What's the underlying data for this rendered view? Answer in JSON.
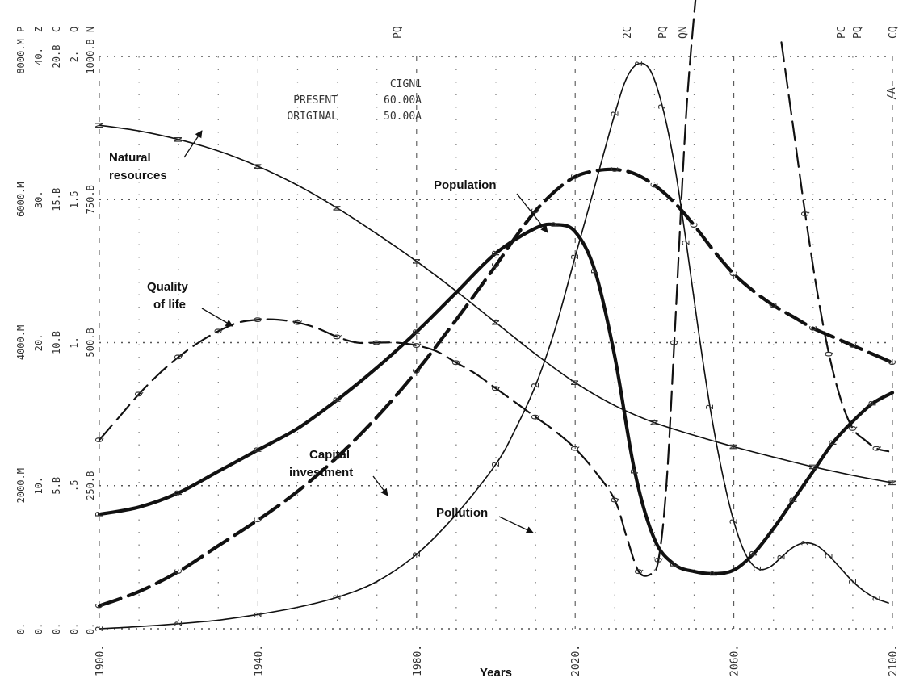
{
  "chart_data": {
    "type": "line",
    "xlabel": "Years",
    "xlim": [
      1900,
      2100
    ],
    "x_ticks": [
      "1900.",
      "1940.",
      "1980.",
      "2020.",
      "2060.",
      "2100."
    ],
    "grid": true,
    "y_axis_columns": [
      {
        "name": "P",
        "unit_label": "P",
        "ticks": [
          "0.",
          "2000.M",
          "4000.M",
          "6000.M",
          "8000.M"
        ]
      },
      {
        "name": "Z",
        "unit_label": "Z",
        "ticks": [
          "0.",
          "10.",
          "20.",
          "30.",
          "40."
        ]
      },
      {
        "name": "C",
        "unit_label": "C",
        "ticks": [
          "0.",
          "5.B",
          "10.B",
          "15.B",
          "20.B"
        ]
      },
      {
        "name": "Q",
        "unit_label": "Q",
        "ticks": [
          "0.",
          ".5",
          "1.",
          "1.5",
          "2."
        ]
      },
      {
        "name": "N",
        "unit_label": "N",
        "ticks": [
          "0.",
          "250.B",
          "500.B",
          "750.B",
          "1000.B"
        ]
      }
    ],
    "top_markers": [
      {
        "x": 1975,
        "text": "PQ"
      },
      {
        "x": 2033,
        "text": "2C"
      },
      {
        "x": 2042,
        "text": "PQ"
      },
      {
        "x": 2047,
        "text": "QN"
      },
      {
        "x": 2087,
        "text": "PC"
      },
      {
        "x": 2091,
        "text": "PQ"
      },
      {
        "x": 2100,
        "text": "CQ"
      }
    ],
    "right_marker": "/A",
    "legend": {
      "code": "CIGN1",
      "rows": [
        {
          "label": "PRESENT",
          "value": "60.00A"
        },
        {
          "label": "ORIGINAL",
          "value": "50.00A"
        }
      ]
    },
    "annotations": {
      "natural_resources": [
        "Natural",
        "resources"
      ],
      "population": [
        "Population"
      ],
      "quality_of_life": [
        "Quality",
        "of life"
      ],
      "capital_investment": [
        "Capital",
        "investment"
      ],
      "pollution": [
        "Pollution"
      ]
    },
    "series": [
      {
        "name": "Population",
        "symbol": "P",
        "style": "thick-solid",
        "color": "#111111",
        "scale_max": 8000,
        "x": [
          1900,
          1910,
          1920,
          1930,
          1940,
          1950,
          1960,
          1970,
          1980,
          1990,
          2000,
          2010,
          2015,
          2020,
          2025,
          2030,
          2035,
          2040,
          2045,
          2050,
          2055,
          2060,
          2065,
          2070,
          2075,
          2080,
          2085,
          2090,
          2095,
          2100
        ],
        "y": [
          1600,
          1700,
          1900,
          2200,
          2500,
          2800,
          3200,
          3650,
          4150,
          4700,
          5250,
          5600,
          5650,
          5550,
          5000,
          3800,
          2200,
          1250,
          900,
          800,
          770,
          820,
          1050,
          1400,
          1800,
          2200,
          2600,
          2900,
          3150,
          3300
        ]
      },
      {
        "name": "Natural resources",
        "symbol": "N",
        "style": "thin-solid",
        "color": "#111111",
        "scale_max": 1000,
        "x": [
          1900,
          1910,
          1920,
          1930,
          1940,
          1950,
          1960,
          1970,
          1980,
          1990,
          2000,
          2010,
          2020,
          2030,
          2040,
          2050,
          2060,
          2070,
          2080,
          2090,
          2100
        ],
        "y": [
          880,
          870,
          855,
          835,
          808,
          775,
          735,
          690,
          642,
          590,
          535,
          480,
          430,
          390,
          360,
          338,
          318,
          300,
          283,
          268,
          255
        ]
      },
      {
        "name": "Quality of life",
        "symbol": "Q",
        "style": "dashed",
        "color": "#111111",
        "scale_max": 2,
        "x": [
          1900,
          1905,
          1910,
          1915,
          1920,
          1925,
          1930,
          1935,
          1940,
          1945,
          1950,
          1955,
          1960,
          1965,
          1970,
          1975,
          1980,
          1985,
          1990,
          1995,
          2000,
          2005,
          2010,
          2015,
          2020,
          2025,
          2030,
          2033,
          2036,
          2039,
          2041,
          2043,
          2045,
          2048,
          2051
        ],
        "y": [
          0.66,
          0.74,
          0.82,
          0.89,
          0.95,
          1.0,
          1.04,
          1.07,
          1.08,
          1.08,
          1.07,
          1.05,
          1.02,
          1.0,
          1.0,
          1.0,
          0.99,
          0.97,
          0.93,
          0.89,
          0.84,
          0.79,
          0.74,
          0.69,
          0.63,
          0.55,
          0.45,
          0.32,
          0.2,
          0.19,
          0.24,
          0.5,
          1.0,
          1.8,
          2.3
        ]
      },
      {
        "name": "Quality of life (recovery)",
        "symbol": "Q",
        "style": "dashed",
        "color": "#111111",
        "scale_max": 2,
        "x": [
          2072,
          2075,
          2078,
          2081,
          2084,
          2087,
          2090,
          2093,
          2096,
          2099
        ],
        "y": [
          2.05,
          1.75,
          1.45,
          1.18,
          0.96,
          0.8,
          0.7,
          0.66,
          0.63,
          0.62
        ]
      },
      {
        "name": "Capital investment",
        "symbol": "C",
        "style": "thick-dashed",
        "color": "#111111",
        "scale_max": 20,
        "x": [
          1900,
          1910,
          1920,
          1930,
          1940,
          1950,
          1960,
          1970,
          1980,
          1990,
          2000,
          2005,
          2010,
          2015,
          2020,
          2025,
          2030,
          2035,
          2040,
          2045,
          2050,
          2055,
          2060,
          2065,
          2070,
          2075,
          2080,
          2085,
          2090,
          2095,
          2100
        ],
        "y": [
          0.8,
          1.3,
          2.0,
          2.9,
          3.8,
          4.8,
          6.0,
          7.4,
          9.0,
          10.8,
          12.7,
          13.7,
          14.6,
          15.3,
          15.8,
          16.0,
          16.05,
          15.9,
          15.5,
          14.9,
          14.1,
          13.2,
          12.4,
          11.8,
          11.3,
          10.9,
          10.5,
          10.2,
          9.9,
          9.6,
          9.3
        ]
      },
      {
        "name": "Pollution",
        "symbol": "2",
        "style": "thin-solid",
        "color": "#111111",
        "scale_max": 40,
        "x": [
          1900,
          1910,
          1920,
          1930,
          1940,
          1950,
          1960,
          1970,
          1980,
          1990,
          2000,
          2005,
          2010,
          2015,
          2020,
          2025,
          2030,
          2033,
          2036,
          2039,
          2042,
          2045,
          2048,
          2051,
          2054,
          2057,
          2060,
          2063,
          2066,
          2069,
          2072,
          2075,
          2078,
          2081,
          2084,
          2087,
          2090,
          2093,
          2096,
          2099
        ],
        "y": [
          0.0,
          0.15,
          0.35,
          0.6,
          1.0,
          1.5,
          2.2,
          3.3,
          5.2,
          8.0,
          11.5,
          14.0,
          17.0,
          21.0,
          26.0,
          31.0,
          36.0,
          38.5,
          39.5,
          39.0,
          36.5,
          32.5,
          27.0,
          21.0,
          15.5,
          11.0,
          7.5,
          5.2,
          4.2,
          4.3,
          5.0,
          5.7,
          6.0,
          5.8,
          5.1,
          4.2,
          3.3,
          2.6,
          2.1,
          1.8
        ]
      }
    ]
  }
}
